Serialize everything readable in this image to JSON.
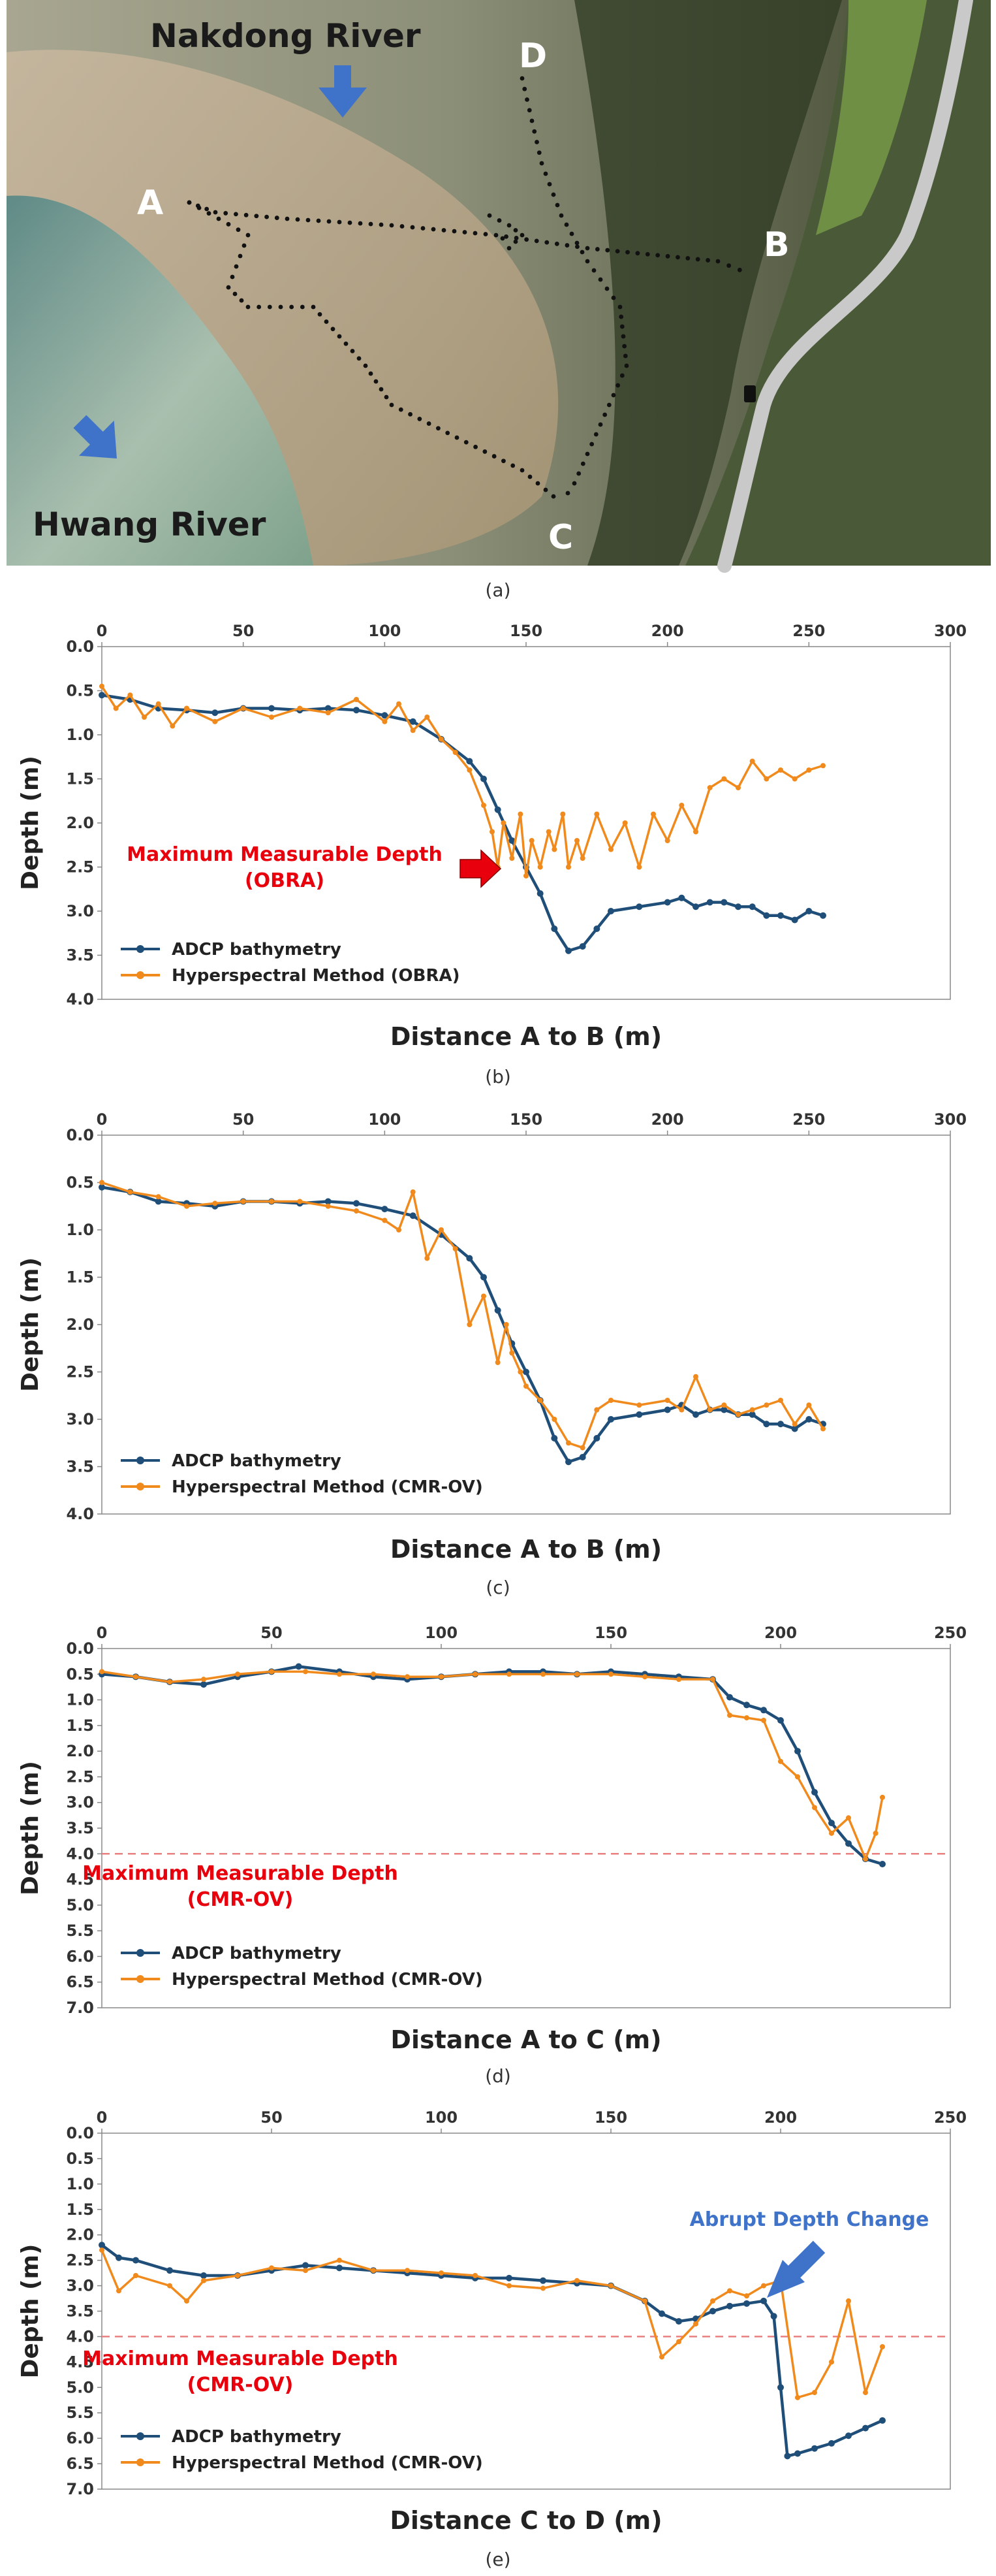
{
  "panel_a": {
    "caption": "(a)",
    "labels": {
      "nakdong": "Nakdong River",
      "hwang": "Hwang River",
      "a": "A",
      "b": "B",
      "c": "C",
      "d": "D"
    },
    "colors": {
      "arrow": "#3f73c9",
      "track": "#111111",
      "road": "#c9c9c9"
    },
    "icons": [
      "arrow-down-icon",
      "arrow-down-right-icon"
    ]
  },
  "legend_adcp": "ADCP bathymetry",
  "chart_data": [
    {
      "type": "line",
      "caption": "(b)",
      "xlabel": "Distance A to B (m)",
      "ylabel": "Depth (m)",
      "xlim": [
        0,
        300
      ],
      "ylim": [
        0,
        4
      ],
      "x_ticks": [
        "0",
        "50",
        "100",
        "150",
        "200",
        "250",
        "300"
      ],
      "y_ticks": [
        "0.0",
        "0.5",
        "1.0",
        "1.5",
        "2.0",
        "2.5",
        "3.0",
        "3.5",
        "4.0"
      ],
      "y_inverted": true,
      "annotation": {
        "text": [
          "Maximum Measurable Depth",
          "(OBRA)"
        ],
        "color": "#e8000d"
      },
      "series": [
        {
          "name": "ADCP bathymetry",
          "color": "#1f4e79",
          "x": [
            0,
            10,
            20,
            30,
            40,
            50,
            60,
            70,
            80,
            90,
            100,
            110,
            120,
            130,
            135,
            140,
            145,
            150,
            155,
            160,
            165,
            170,
            175,
            180,
            190,
            200,
            205,
            210,
            215,
            220,
            225,
            230,
            235,
            240,
            245,
            250,
            255
          ],
          "y": [
            0.55,
            0.6,
            0.7,
            0.72,
            0.75,
            0.7,
            0.7,
            0.72,
            0.7,
            0.72,
            0.78,
            0.85,
            1.05,
            1.3,
            1.5,
            1.85,
            2.2,
            2.5,
            2.8,
            3.2,
            3.45,
            3.4,
            3.2,
            3.0,
            2.95,
            2.9,
            2.85,
            2.95,
            2.9,
            2.9,
            2.95,
            2.95,
            3.05,
            3.05,
            3.1,
            3.0,
            3.05
          ]
        },
        {
          "name": "Hyperspectral Method (OBRA)",
          "color": "#f08a1c",
          "x": [
            0,
            5,
            10,
            15,
            20,
            25,
            30,
            40,
            50,
            60,
            70,
            80,
            90,
            100,
            105,
            110,
            115,
            120,
            125,
            130,
            135,
            138,
            140,
            142,
            145,
            148,
            150,
            152,
            155,
            158,
            160,
            163,
            165,
            168,
            170,
            175,
            180,
            185,
            190,
            195,
            200,
            205,
            210,
            215,
            220,
            225,
            230,
            235,
            240,
            245,
            250,
            255
          ],
          "y": [
            0.45,
            0.7,
            0.55,
            0.8,
            0.65,
            0.9,
            0.7,
            0.85,
            0.7,
            0.8,
            0.7,
            0.75,
            0.6,
            0.85,
            0.65,
            0.95,
            0.8,
            1.05,
            1.2,
            1.4,
            1.8,
            2.1,
            2.5,
            2.0,
            2.4,
            1.9,
            2.6,
            2.2,
            2.5,
            2.1,
            2.3,
            1.9,
            2.5,
            2.2,
            2.4,
            1.9,
            2.3,
            2.0,
            2.5,
            1.9,
            2.2,
            1.8,
            2.1,
            1.6,
            1.5,
            1.6,
            1.3,
            1.5,
            1.4,
            1.5,
            1.4,
            1.35
          ]
        }
      ]
    },
    {
      "type": "line",
      "caption": "(c)",
      "xlabel": "Distance A to B (m)",
      "ylabel": "Depth (m)",
      "xlim": [
        0,
        300
      ],
      "ylim": [
        0,
        4
      ],
      "x_ticks": [
        "0",
        "50",
        "100",
        "150",
        "200",
        "250",
        "300"
      ],
      "y_ticks": [
        "0.0",
        "0.5",
        "1.0",
        "1.5",
        "2.0",
        "2.5",
        "3.0",
        "3.5",
        "4.0"
      ],
      "y_inverted": true,
      "series": [
        {
          "name": "ADCP bathymetry",
          "color": "#1f4e79",
          "x": [
            0,
            10,
            20,
            30,
            40,
            50,
            60,
            70,
            80,
            90,
            100,
            110,
            120,
            130,
            135,
            140,
            145,
            150,
            155,
            160,
            165,
            170,
            175,
            180,
            190,
            200,
            205,
            210,
            215,
            220,
            225,
            230,
            235,
            240,
            245,
            250,
            255
          ],
          "y": [
            0.55,
            0.6,
            0.7,
            0.72,
            0.75,
            0.7,
            0.7,
            0.72,
            0.7,
            0.72,
            0.78,
            0.85,
            1.05,
            1.3,
            1.5,
            1.85,
            2.2,
            2.5,
            2.8,
            3.2,
            3.45,
            3.4,
            3.2,
            3.0,
            2.95,
            2.9,
            2.85,
            2.95,
            2.9,
            2.9,
            2.95,
            2.95,
            3.05,
            3.05,
            3.1,
            3.0,
            3.05
          ]
        },
        {
          "name": "Hyperspectral Method (CMR-OV)",
          "color": "#f08a1c",
          "x": [
            0,
            10,
            20,
            30,
            40,
            50,
            60,
            70,
            80,
            90,
            100,
            105,
            110,
            115,
            120,
            125,
            130,
            135,
            140,
            143,
            145,
            148,
            150,
            155,
            160,
            165,
            170,
            175,
            180,
            190,
            200,
            205,
            210,
            215,
            220,
            225,
            230,
            235,
            240,
            245,
            250,
            255
          ],
          "y": [
            0.5,
            0.6,
            0.65,
            0.75,
            0.72,
            0.7,
            0.7,
            0.7,
            0.75,
            0.8,
            0.9,
            1.0,
            0.6,
            1.3,
            1.0,
            1.2,
            2.0,
            1.7,
            2.4,
            2.0,
            2.3,
            2.5,
            2.65,
            2.8,
            3.0,
            3.25,
            3.3,
            2.9,
            2.8,
            2.85,
            2.8,
            2.9,
            2.55,
            2.9,
            2.85,
            2.95,
            2.9,
            2.85,
            2.8,
            3.05,
            2.85,
            3.1
          ]
        }
      ]
    },
    {
      "type": "line",
      "caption": "(d)",
      "xlabel": "Distance A to C (m)",
      "ylabel": "Depth (m)",
      "xlim": [
        0,
        250
      ],
      "ylim": [
        0,
        7
      ],
      "x_ticks": [
        "0",
        "50",
        "100",
        "150",
        "200",
        "250"
      ],
      "y_ticks": [
        "0.0",
        "0.5",
        "1.0",
        "1.5",
        "2.0",
        "2.5",
        "3.0",
        "3.5",
        "4.0",
        "4.5",
        "5.0",
        "5.5",
        "6.0",
        "6.5",
        "7.0"
      ],
      "y_inverted": true,
      "reference_line": {
        "y": 4.0,
        "color": "#e88080"
      },
      "annotation": {
        "text": [
          "Maximum Measurable Depth",
          "(CMR-OV)"
        ],
        "color": "#e8000d"
      },
      "series": [
        {
          "name": "ADCP bathymetry",
          "color": "#1f4e79",
          "x": [
            0,
            10,
            20,
            30,
            40,
            50,
            58,
            70,
            80,
            90,
            100,
            110,
            120,
            130,
            140,
            150,
            160,
            170,
            180,
            185,
            190,
            195,
            200,
            205,
            210,
            215,
            220,
            225,
            230
          ],
          "y": [
            0.5,
            0.55,
            0.65,
            0.7,
            0.55,
            0.45,
            0.35,
            0.45,
            0.55,
            0.6,
            0.55,
            0.5,
            0.45,
            0.45,
            0.5,
            0.45,
            0.5,
            0.55,
            0.6,
            0.95,
            1.1,
            1.2,
            1.4,
            2.0,
            2.8,
            3.4,
            3.8,
            4.1,
            4.2
          ]
        },
        {
          "name": "Hyperspectral Method (CMR-OV)",
          "color": "#f08a1c",
          "x": [
            0,
            10,
            20,
            30,
            40,
            50,
            60,
            70,
            80,
            90,
            100,
            110,
            120,
            130,
            140,
            150,
            160,
            170,
            180,
            185,
            190,
            195,
            200,
            205,
            210,
            215,
            220,
            225,
            228,
            230
          ],
          "y": [
            0.45,
            0.55,
            0.65,
            0.6,
            0.5,
            0.45,
            0.45,
            0.5,
            0.5,
            0.55,
            0.55,
            0.5,
            0.5,
            0.5,
            0.5,
            0.5,
            0.55,
            0.6,
            0.6,
            1.3,
            1.35,
            1.4,
            2.2,
            2.5,
            3.1,
            3.6,
            3.3,
            4.1,
            3.6,
            2.9
          ]
        }
      ]
    },
    {
      "type": "line",
      "caption": "(e)",
      "xlabel": "Distance C to D (m)",
      "ylabel": "Depth (m)",
      "xlim": [
        0,
        250
      ],
      "ylim": [
        0,
        7
      ],
      "x_ticks": [
        "0",
        "50",
        "100",
        "150",
        "200",
        "250"
      ],
      "y_ticks": [
        "0.0",
        "0.5",
        "1.0",
        "1.5",
        "2.0",
        "2.5",
        "3.0",
        "3.5",
        "4.0",
        "4.5",
        "5.0",
        "5.5",
        "6.0",
        "6.5",
        "7.0"
      ],
      "y_inverted": true,
      "reference_line": {
        "y": 4.0,
        "color": "#e88080"
      },
      "annotation": {
        "text": [
          "Maximum Measurable Depth",
          "(CMR-OV)"
        ],
        "color": "#e8000d"
      },
      "annotation2": {
        "text": "Abrupt Depth Change",
        "color": "#3f73c9"
      },
      "series": [
        {
          "name": "ADCP bathymetry",
          "color": "#1f4e79",
          "x": [
            0,
            5,
            10,
            20,
            30,
            40,
            50,
            60,
            70,
            80,
            90,
            100,
            110,
            120,
            130,
            140,
            150,
            160,
            165,
            170,
            175,
            180,
            185,
            190,
            195,
            198,
            200,
            202,
            205,
            210,
            215,
            220,
            225,
            230
          ],
          "y": [
            2.2,
            2.45,
            2.5,
            2.7,
            2.8,
            2.8,
            2.7,
            2.6,
            2.65,
            2.7,
            2.75,
            2.8,
            2.85,
            2.85,
            2.9,
            2.95,
            3.0,
            3.3,
            3.55,
            3.7,
            3.65,
            3.5,
            3.4,
            3.35,
            3.3,
            3.6,
            5.0,
            6.35,
            6.3,
            6.2,
            6.1,
            5.95,
            5.8,
            5.65
          ]
        },
        {
          "name": "Hyperspectral Method (CMR-OV)",
          "color": "#f08a1c",
          "x": [
            0,
            5,
            10,
            20,
            25,
            30,
            40,
            50,
            60,
            70,
            80,
            90,
            100,
            110,
            120,
            130,
            140,
            150,
            160,
            165,
            170,
            175,
            180,
            185,
            190,
            195,
            200,
            205,
            210,
            215,
            220,
            225,
            230
          ],
          "y": [
            2.3,
            3.1,
            2.8,
            3.0,
            3.3,
            2.9,
            2.8,
            2.65,
            2.7,
            2.5,
            2.7,
            2.7,
            2.75,
            2.8,
            3.0,
            3.05,
            2.9,
            3.0,
            3.3,
            4.4,
            4.1,
            3.75,
            3.3,
            3.1,
            3.2,
            3.0,
            2.9,
            5.2,
            5.1,
            4.5,
            3.3,
            5.1,
            4.2
          ]
        }
      ]
    }
  ]
}
